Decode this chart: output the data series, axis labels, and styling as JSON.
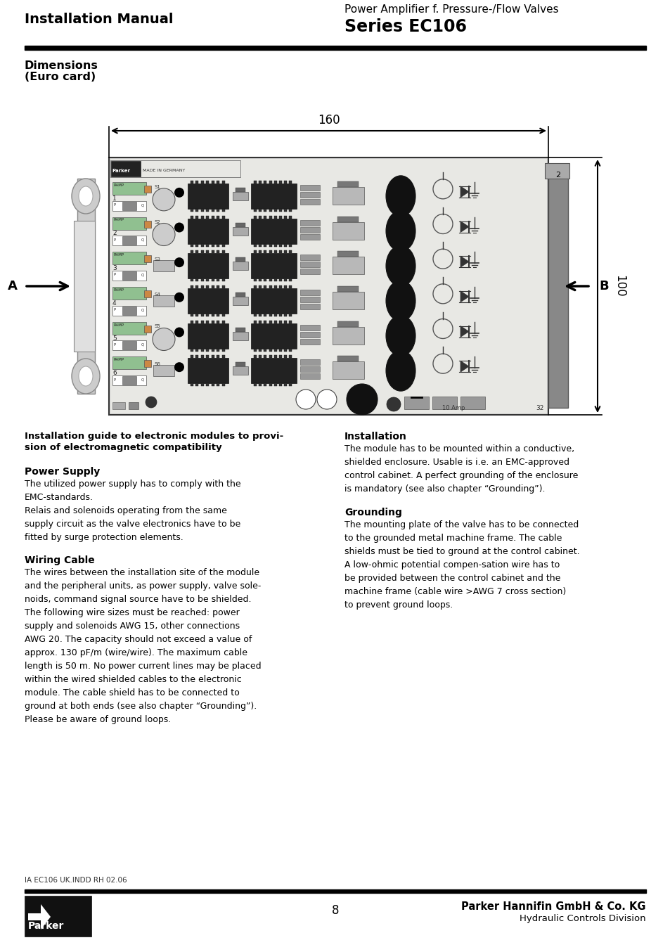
{
  "title_line1": "Power Amplifier f. Pressure-/Flow Valves",
  "title_line2": "Series EC106",
  "header_left": "Installation Manual",
  "section1_title": "Dimensions",
  "section1_subtitle": "(Euro card)",
  "dim_width": "160",
  "dim_height": "100",
  "label_A": "A",
  "label_B": "B",
  "section2_title_line1": "Installation guide to electronic modules to provi-",
  "section2_title_line2": "sion of electromagnetic compatibility",
  "power_supply_title": "Power Supply",
  "power_supply_text": "The utilized power supply has to comply with the\nEMC-standards.\nRelais and solenoids operating from the same\nsupply circuit as the valve electronics have to be\nfitted by surge protection elements.",
  "wiring_title": "Wiring Cable",
  "wiring_text": "The wires between the installation site of the module\nand the peripheral units, as power supply, valve sole-\nnoids, command signal source have to be shielded.\nThe following wire sizes must be reached: power\nsupply and solenoids AWG 15, other connections\nAWG 20. The capacity should not exceed a value of\napprox. 130 pF/m (wire/wire). The maximum cable\nlength is 50 m. No power current lines may be placed\nwithin the wired shielded cables to the electronic\nmodule. The cable shield has to be connected to\nground at both ends (see also chapter “Grounding”).\nPlease be aware of ground loops.",
  "installation_title": "Installation",
  "installation_text": "The module has to be mounted within a conductive,\nshielded enclosure. Usable is i.e. an EMC-approved\ncontrol cabinet. A perfect grounding of the enclosure\nis mandatory (see also chapter “Grounding”).",
  "grounding_title": "Grounding",
  "grounding_text": "The mounting plate of the valve has to be connected\nto the grounded metal machine frame. The cable\nshields must be tied to ground at the control cabinet.\nA low-ohmic potential compen-sation wire has to\nbe provided between the control cabinet and the\nmachine frame (cable wire >AWG 7 cross section)\nto prevent ground loops.",
  "footer_code": "IA EC106 UK.INDD RH 02.06",
  "footer_page": "8",
  "footer_company": "Parker Hannifin GmbH & Co. KG",
  "footer_division": "Hydraulic Controls Division",
  "bg_color": "#ffffff"
}
